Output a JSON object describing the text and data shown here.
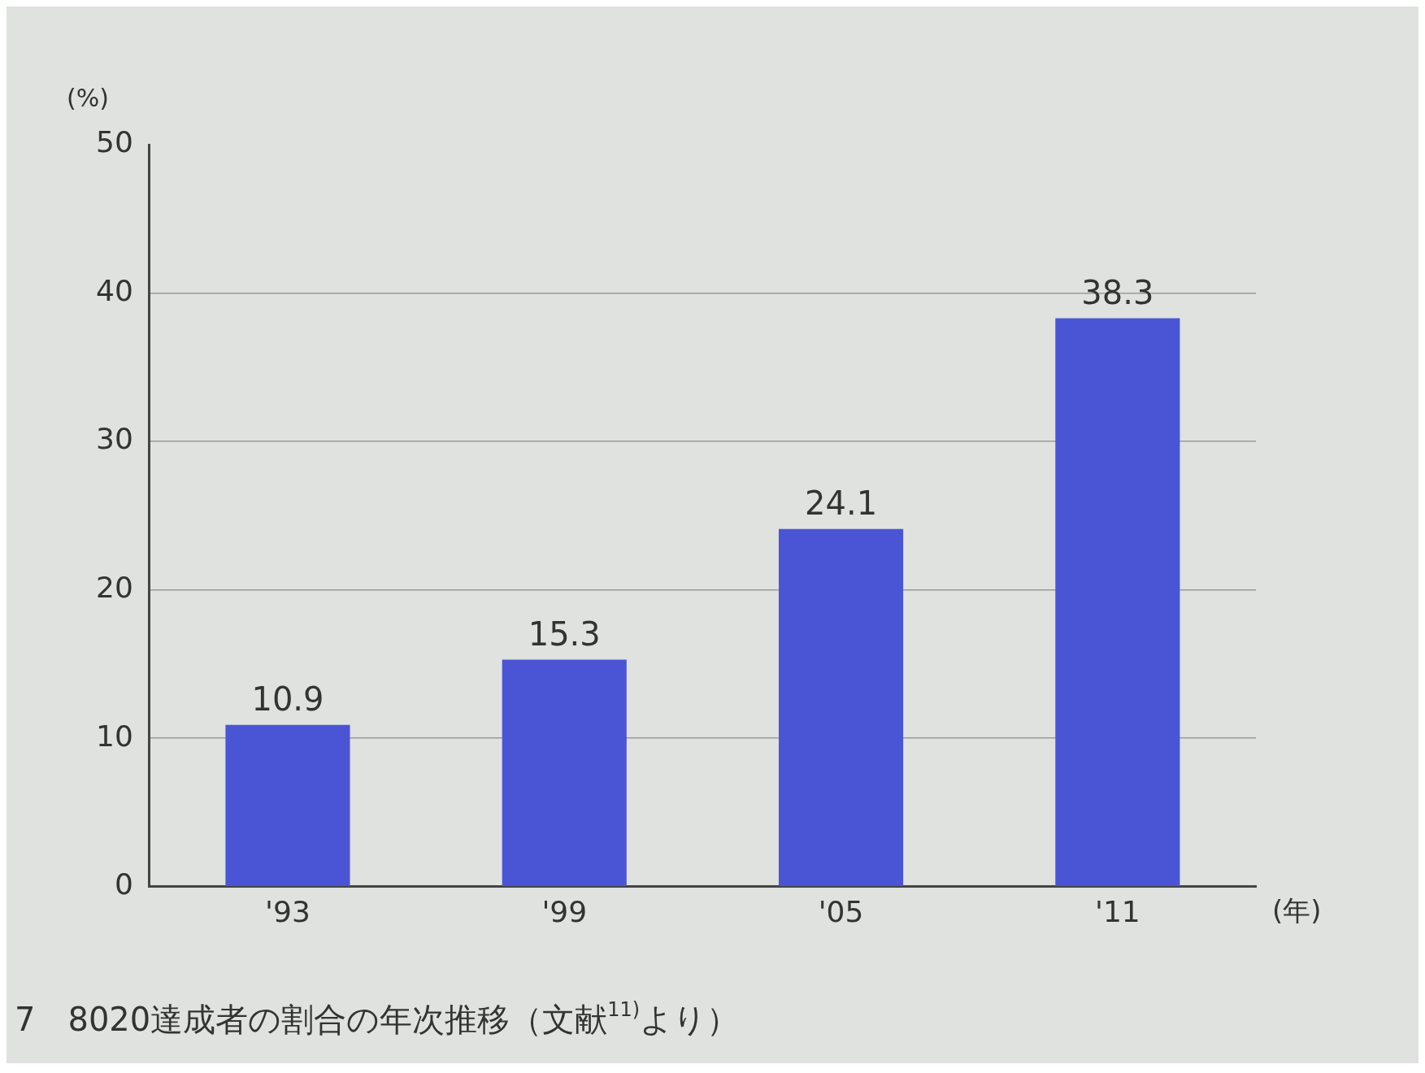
{
  "chart_data": {
    "type": "bar",
    "categories": [
      "'93",
      "'99",
      "'05",
      "'11"
    ],
    "values": [
      10.9,
      15.3,
      24.1,
      38.3
    ],
    "color": "#4a55d6",
    "ylim": [
      0,
      50
    ],
    "yticks": [
      0,
      10,
      20,
      30,
      40,
      50
    ],
    "grid": "y",
    "data_labels": true,
    "ylabel": "(%)",
    "xlabel": "(年)",
    "annotations": [
      "7　8020達成者の割合の年次推移（文献$^{11)}$より）"
    ]
  }
}
